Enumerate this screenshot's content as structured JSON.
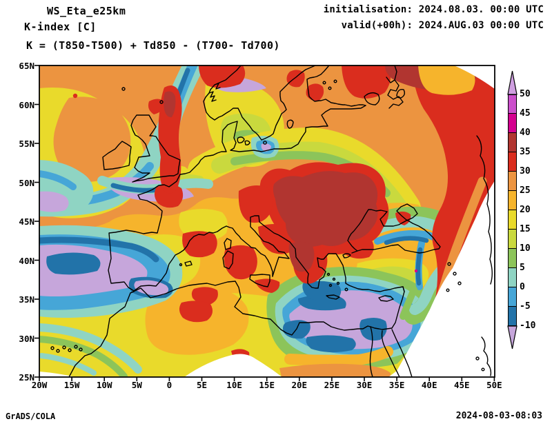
{
  "header": {
    "model": "WS_Eta_e25km",
    "product": "K-index [C]",
    "formula": "K = (T850-T500) + Td850 - (T700- Td700)",
    "initialisation": "initialisation: 2024.08.03. 00:00 UTC",
    "valid": "valid(+00h): 2024.AUG.03 00:00 UTC"
  },
  "footer": {
    "credit": "GrADS/COLA",
    "timestamp": "2024-08-03-08:03"
  },
  "axes": {
    "lat_labels": [
      "65N",
      "60N",
      "55N",
      "50N",
      "45N",
      "40N",
      "35N",
      "30N",
      "25N"
    ],
    "lon_labels": [
      "20W",
      "15W",
      "10W",
      "5W",
      "0",
      "5E",
      "10E",
      "15E",
      "20E",
      "25E",
      "30E",
      "35E",
      "40E",
      "45E",
      "50E"
    ]
  },
  "colorbar": {
    "tick_labels": [
      "50",
      "45",
      "40",
      "35",
      "30",
      "25",
      "20",
      "15",
      "10",
      "5",
      "0",
      "-5",
      "-10"
    ],
    "segment_colors": [
      "#cb4fcb",
      "#d4008f",
      "#b13530",
      "#da2d1e",
      "#ec9440",
      "#f6b42c",
      "#e9da2b",
      "#c9d93e",
      "#8cc45a",
      "#8fd4c3",
      "#46a6d7",
      "#2273a9"
    ],
    "above_max_color": "#cf9fe0",
    "below_min_color": "#c6a6db"
  },
  "legend_units": "C",
  "palette_meaning": "K-index filled contours every 5 C from -10 to 50"
}
